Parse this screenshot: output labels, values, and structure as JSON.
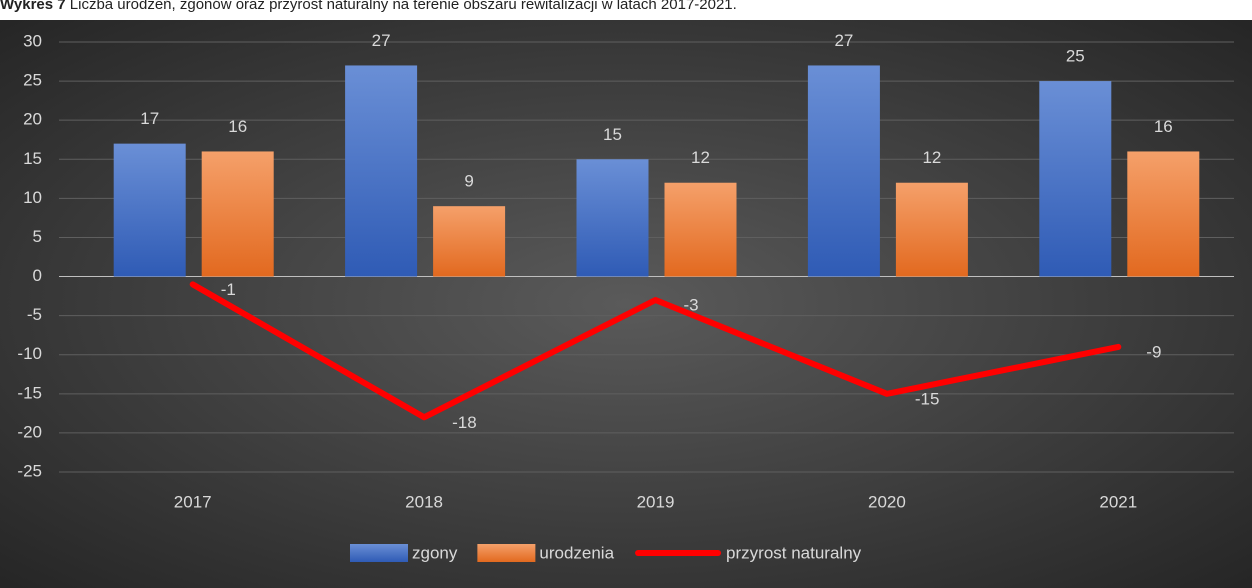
{
  "chart_data": {
    "type": "bar-line",
    "caption_label": "Wykres 7",
    "title": "Liczba urodzeń, zgonów oraz przyrost naturalny na terenie obszaru rewitalizacji w latach 2017-2021.",
    "categories": [
      "2017",
      "2018",
      "2019",
      "2020",
      "2021"
    ],
    "series": [
      {
        "name": "zgony",
        "type": "bar",
        "color": "#4472c4",
        "values": [
          17,
          27,
          15,
          27,
          25
        ]
      },
      {
        "name": "urodzenia",
        "type": "bar",
        "color": "#ed7d31",
        "values": [
          16,
          9,
          12,
          12,
          16
        ]
      },
      {
        "name": "przyrost naturalny",
        "type": "line",
        "color": "#ff0000",
        "values": [
          -1,
          -18,
          -3,
          -15,
          -9
        ]
      }
    ],
    "ylim": [
      -25,
      30
    ],
    "yticks": [
      30,
      25,
      20,
      15,
      10,
      5,
      0,
      -5,
      -10,
      -15,
      -20,
      -25
    ],
    "grid": true,
    "legend": "bottom"
  }
}
